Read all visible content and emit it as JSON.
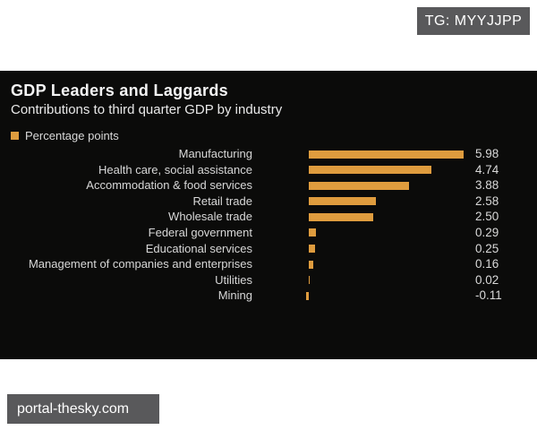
{
  "watermarks": {
    "top_badge": "TG: MYYJJPP",
    "bottom_badge": "portal-thesky.com"
  },
  "colors": {
    "bar": "#df9c3e",
    "panel_background": "#0b0b0a",
    "page_background": "#ffffff",
    "watermark_background": "#59595b",
    "text": "#d9d9d9",
    "title_text": "#f4f4f4"
  },
  "chart_data": {
    "type": "bar",
    "orientation": "horizontal",
    "title": "GDP Leaders and Laggards",
    "subtitle": "Contributions to third quarter GDP by industry",
    "legend": [
      "Percentage points"
    ],
    "legend_position": "top-left",
    "grid": false,
    "axis_ticks_visible": false,
    "value_range": [
      -0.11,
      5.98
    ],
    "categories": [
      "Manufacturing",
      "Health care, social assistance",
      "Accommodation & food services",
      "Retail trade",
      "Wholesale trade",
      "Federal government",
      "Educational services",
      "Management of companies and enterprises",
      "Utilities",
      "Mining"
    ],
    "values": [
      5.98,
      4.74,
      3.88,
      2.58,
      2.5,
      0.29,
      0.25,
      0.16,
      0.02,
      -0.11
    ],
    "value_labels": [
      "5.98",
      "4.74",
      "3.88",
      "2.58",
      "2.50",
      "0.29",
      "0.25",
      "0.16",
      "0.02",
      "-0.11"
    ]
  }
}
